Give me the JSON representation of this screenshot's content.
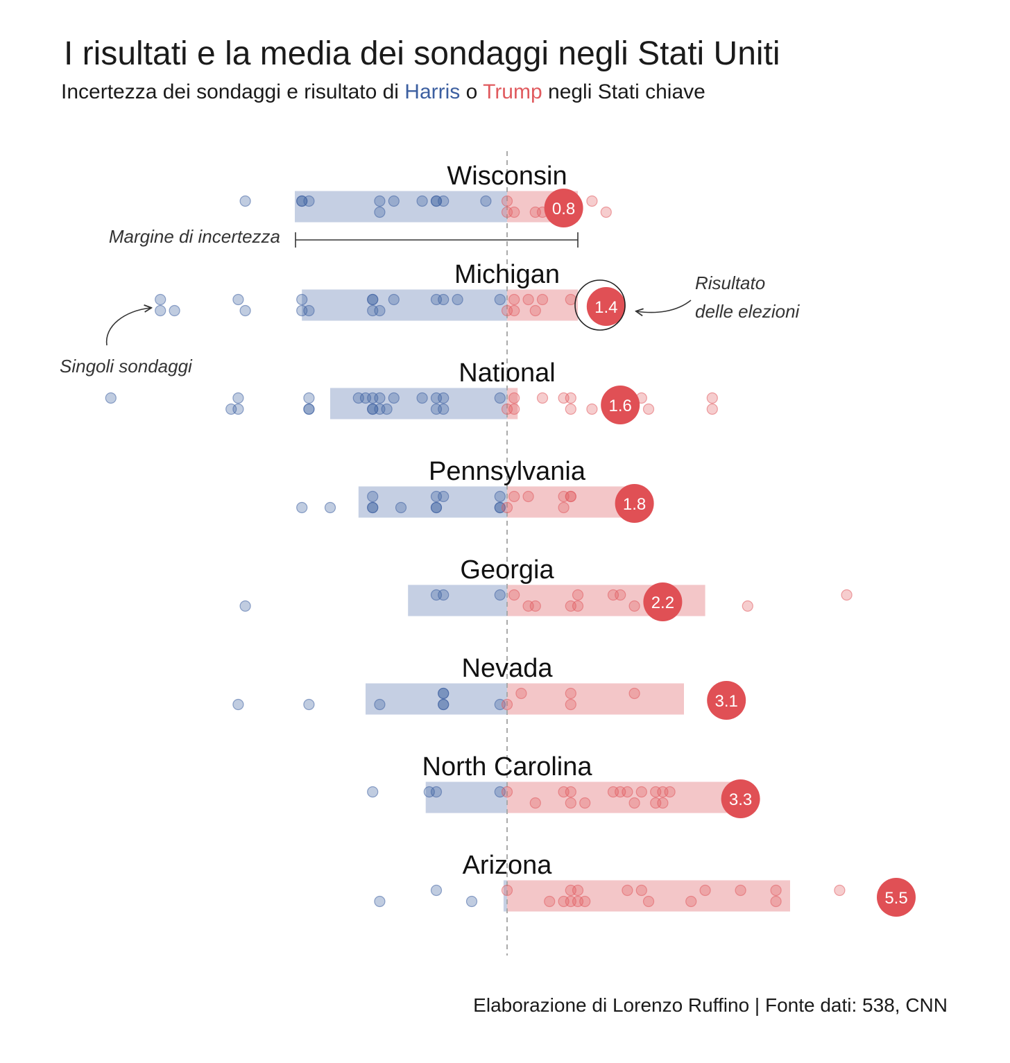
{
  "title": "I risultati e la media dei sondaggi negli Stati Uniti",
  "subtitle": {
    "before": "Incertezza dei sondaggi e risultato di ",
    "harris": "Harris",
    "middle": " o ",
    "trump": "Trump",
    "after": " negli Stati chiave"
  },
  "footer": "Elaborazione di Lorenzo Ruffino | Fonte dati: 538, CNN",
  "annotations": {
    "margin": "Margine di incertezza",
    "result_line1": "Risultato",
    "result_line2": "delle elezioni",
    "polls": "Singoli sondaggi"
  },
  "colors": {
    "harris": "#3c5fa0",
    "trump": "#e05a5e",
    "harris_band": "#c5cfe3",
    "trump_band": "#f3c6c8",
    "result": "#e05055"
  },
  "chart_data": {
    "type": "scatter",
    "x_unit": "margin (positive = Trump, negative = Harris)",
    "xlim": [
      -8.0,
      7.0
    ],
    "series": [
      {
        "name": "Wisconsin",
        "band": [
          -3.0,
          1.0
        ],
        "result": 0.8,
        "polls": [
          [
            -3.7,
            -1
          ],
          [
            -2.9,
            -1
          ],
          [
            -2.8,
            -1
          ],
          [
            -2.9,
            -1
          ],
          [
            -1.8,
            -1
          ],
          [
            -1.6,
            -1
          ],
          [
            -1.2,
            -1
          ],
          [
            -1.0,
            -1
          ],
          [
            -0.3,
            -1
          ],
          [
            0.0,
            -1
          ],
          [
            -1.0,
            -1
          ],
          [
            -0.9,
            -1
          ],
          [
            -1.8,
            1
          ],
          [
            0.0,
            1
          ],
          [
            0.1,
            1
          ],
          [
            0.4,
            1
          ],
          [
            0.5,
            1
          ],
          [
            1.2,
            -1
          ],
          [
            1.4,
            1
          ]
        ]
      },
      {
        "name": "Michigan",
        "band": [
          -2.9,
          1.0
        ],
        "result": 1.4,
        "polls": [
          [
            -4.9,
            -1
          ],
          [
            -4.9,
            1
          ],
          [
            -4.7,
            1
          ],
          [
            -3.8,
            -1
          ],
          [
            -3.7,
            1
          ],
          [
            -2.9,
            -1
          ],
          [
            -2.9,
            1
          ],
          [
            -2.8,
            1
          ],
          [
            -1.9,
            -1
          ],
          [
            -1.9,
            -1
          ],
          [
            -1.8,
            1
          ],
          [
            -1.9,
            1
          ],
          [
            -1.6,
            -1
          ],
          [
            -1.0,
            -1
          ],
          [
            -0.9,
            -1
          ],
          [
            -0.7,
            -1
          ],
          [
            -0.1,
            -1
          ],
          [
            0.0,
            1
          ],
          [
            0.1,
            -1
          ],
          [
            0.1,
            1
          ],
          [
            0.3,
            -1
          ],
          [
            0.4,
            1
          ],
          [
            0.5,
            -1
          ],
          [
            0.9,
            -1
          ]
        ]
      },
      {
        "name": "National",
        "band": [
          -2.5,
          0.15
        ],
        "result": 1.6,
        "polls": [
          [
            -5.6,
            -1
          ],
          [
            -3.8,
            -1
          ],
          [
            -3.9,
            1
          ],
          [
            -3.8,
            1
          ],
          [
            -2.8,
            -1
          ],
          [
            -2.8,
            1
          ],
          [
            -2.8,
            1
          ],
          [
            -2.1,
            -1
          ],
          [
            -2.0,
            -1
          ],
          [
            -1.9,
            -1
          ],
          [
            -1.8,
            -1
          ],
          [
            -1.9,
            1
          ],
          [
            -1.8,
            1
          ],
          [
            -1.9,
            1
          ],
          [
            -1.7,
            1
          ],
          [
            -1.6,
            -1
          ],
          [
            -1.2,
            -1
          ],
          [
            -1.0,
            -1
          ],
          [
            -0.9,
            -1
          ],
          [
            -1.0,
            1
          ],
          [
            -0.9,
            1
          ],
          [
            -0.1,
            -1
          ],
          [
            0.0,
            1
          ],
          [
            0.1,
            -1
          ],
          [
            0.1,
            1
          ],
          [
            0.5,
            -1
          ],
          [
            0.8,
            -1
          ],
          [
            0.9,
            1
          ],
          [
            0.9,
            -1
          ],
          [
            1.2,
            1
          ],
          [
            1.9,
            -1
          ],
          [
            2.0,
            1
          ],
          [
            2.9,
            -1
          ],
          [
            2.9,
            1
          ]
        ]
      },
      {
        "name": "Pennsylvania",
        "band": [
          -2.1,
          1.7
        ],
        "result": 1.8,
        "polls": [
          [
            -2.9,
            1
          ],
          [
            -2.5,
            1
          ],
          [
            -1.9,
            -1
          ],
          [
            -1.9,
            1
          ],
          [
            -1.9,
            1
          ],
          [
            -1.5,
            1
          ],
          [
            -1.0,
            -1
          ],
          [
            -1.0,
            1
          ],
          [
            -1.0,
            1
          ],
          [
            -0.9,
            -1
          ],
          [
            -0.1,
            -1
          ],
          [
            -0.1,
            1
          ],
          [
            -0.1,
            1
          ],
          [
            0.0,
            1
          ],
          [
            0.1,
            -1
          ],
          [
            0.3,
            -1
          ],
          [
            0.8,
            -1
          ],
          [
            0.9,
            -1
          ],
          [
            0.8,
            1
          ],
          [
            0.9,
            -1
          ],
          [
            1.9,
            -1
          ]
        ]
      },
      {
        "name": "Georgia",
        "band": [
          -1.4,
          2.8
        ],
        "result": 2.2,
        "polls": [
          [
            -3.7,
            1
          ],
          [
            -1.0,
            -1
          ],
          [
            -0.9,
            -1
          ],
          [
            -0.1,
            -1
          ],
          [
            0.1,
            -1
          ],
          [
            0.3,
            1
          ],
          [
            0.4,
            1
          ],
          [
            1.0,
            -1
          ],
          [
            0.9,
            1
          ],
          [
            1.0,
            1
          ],
          [
            1.5,
            -1
          ],
          [
            1.6,
            -1
          ],
          [
            1.8,
            1
          ],
          [
            3.4,
            1
          ],
          [
            4.8,
            -1
          ]
        ]
      },
      {
        "name": "Nevada",
        "band": [
          -2.0,
          2.5
        ],
        "result": 3.1,
        "polls": [
          [
            -3.8,
            1
          ],
          [
            -2.8,
            1
          ],
          [
            -1.8,
            1
          ],
          [
            -0.9,
            -1
          ],
          [
            -0.9,
            -1
          ],
          [
            -0.9,
            1
          ],
          [
            -0.9,
            1
          ],
          [
            -0.1,
            1
          ],
          [
            0.0,
            1
          ],
          [
            0.2,
            -1
          ],
          [
            0.9,
            -1
          ],
          [
            0.9,
            1
          ],
          [
            1.8,
            -1
          ]
        ]
      },
      {
        "name": "North Carolina",
        "band": [
          -1.15,
          3.2
        ],
        "result": 3.3,
        "polls": [
          [
            -1.9,
            -1
          ],
          [
            -1.0,
            -1
          ],
          [
            -1.1,
            -1
          ],
          [
            -0.1,
            -1
          ],
          [
            0.0,
            -1
          ],
          [
            0.4,
            1
          ],
          [
            0.8,
            -1
          ],
          [
            0.9,
            -1
          ],
          [
            0.9,
            1
          ],
          [
            1.1,
            1
          ],
          [
            1.5,
            -1
          ],
          [
            1.6,
            -1
          ],
          [
            1.8,
            1
          ],
          [
            1.9,
            -1
          ],
          [
            1.7,
            -1
          ],
          [
            2.1,
            -1
          ],
          [
            2.1,
            1
          ],
          [
            2.2,
            1
          ],
          [
            2.2,
            -1
          ],
          [
            2.3,
            -1
          ]
        ]
      },
      {
        "name": "Arizona",
        "band": [
          -0.05,
          4.0
        ],
        "result": 5.5,
        "polls": [
          [
            -1.0,
            -1
          ],
          [
            -0.5,
            1
          ],
          [
            -1.8,
            1
          ],
          [
            0.0,
            -1
          ],
          [
            0.6,
            1
          ],
          [
            0.8,
            1
          ],
          [
            0.9,
            -1
          ],
          [
            0.9,
            1
          ],
          [
            1.0,
            1
          ],
          [
            1.1,
            1
          ],
          [
            1.0,
            -1
          ],
          [
            1.7,
            -1
          ],
          [
            1.9,
            -1
          ],
          [
            2.0,
            1
          ],
          [
            2.6,
            1
          ],
          [
            2.8,
            -1
          ],
          [
            3.3,
            -1
          ],
          [
            3.8,
            -1
          ],
          [
            3.8,
            1
          ],
          [
            4.7,
            -1
          ]
        ]
      }
    ]
  }
}
